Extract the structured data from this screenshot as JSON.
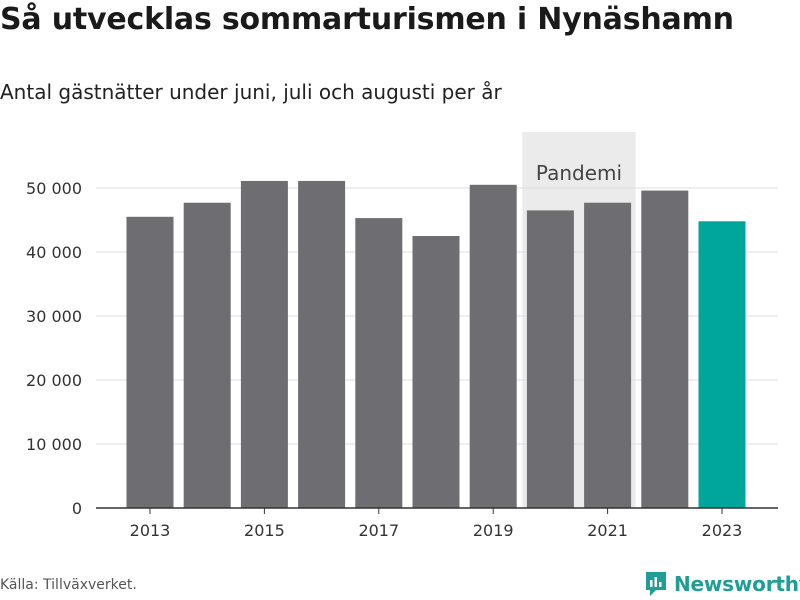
{
  "title": "Så utvecklas sommarturismen i Nynäshamn",
  "subtitle": "Antal gästnätter under juni, juli och augusti per år",
  "source": "Källa: Tillväxverket.",
  "brand": {
    "label": "Newsworthy",
    "icon": "newsworthy-logo-icon",
    "color": "#1f9e95"
  },
  "chart_data": {
    "type": "bar",
    "categories": [
      "2013",
      "2014",
      "2015",
      "2016",
      "2017",
      "2018",
      "2019",
      "2020",
      "2021",
      "2022",
      "2023"
    ],
    "values": [
      45500,
      47700,
      51100,
      51100,
      45300,
      42500,
      50500,
      46500,
      47700,
      49600,
      44800
    ],
    "x_tick_labels": [
      "2013",
      "2015",
      "2017",
      "2019",
      "2021",
      "2023"
    ],
    "y_ticks": [
      0,
      10000,
      20000,
      30000,
      40000,
      50000
    ],
    "y_tick_labels": [
      "0",
      "10 000",
      "20 000",
      "30 000",
      "40 000",
      "50 000"
    ],
    "ylim": [
      0,
      58000
    ],
    "grid": true,
    "highlight_category": "2023",
    "colors": {
      "bar": "#6e6d72",
      "highlight": "#00a59b",
      "band": "#ebebeb",
      "grid": "#dddddd",
      "axis": "#333333"
    },
    "annotations": [
      {
        "label": "Pandemi",
        "from": "2020",
        "to": "2021"
      }
    ]
  }
}
